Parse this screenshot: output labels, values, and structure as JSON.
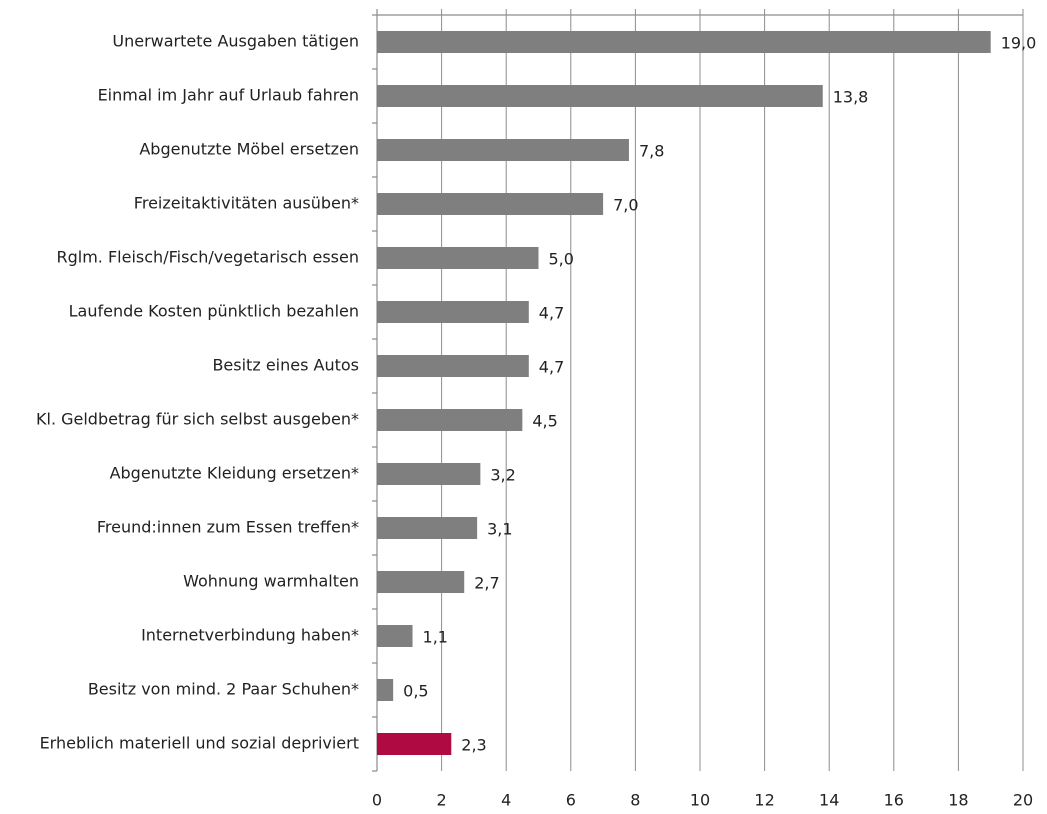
{
  "chart_data": {
    "type": "bar",
    "orientation": "horizontal",
    "categories": [
      "Unerwartete Ausgaben tätigen",
      "Einmal im Jahr auf Urlaub fahren",
      "Abgenutzte Möbel ersetzen",
      "Freizeitaktivitäten ausüben*",
      "Rglm. Fleisch/Fisch/vegetarisch essen",
      "Laufende Kosten pünktlich bezahlen",
      "Besitz eines Autos",
      "Kl. Geldbetrag für sich selbst ausgeben*",
      "Abgenutzte Kleidung ersetzen*",
      "Freund:innen zum Essen treffen*",
      "Wohnung warmhalten",
      "Internetverbindung haben*",
      "Besitz von mind. 2 Paar Schuhen*",
      "Erheblich materiell und sozial depriviert"
    ],
    "values": [
      19.0,
      13.8,
      7.8,
      7.0,
      5.0,
      4.7,
      4.7,
      4.5,
      3.2,
      3.1,
      2.7,
      1.1,
      0.5,
      2.3
    ],
    "value_labels": [
      "19,0",
      "13,8",
      "7,8",
      "7,0",
      "5,0",
      "4,7",
      "4,7",
      "4,5",
      "3,2",
      "3,1",
      "2,7",
      "1,1",
      "0,5",
      "2,3"
    ],
    "colors": [
      "#7f7f7f",
      "#7f7f7f",
      "#7f7f7f",
      "#7f7f7f",
      "#7f7f7f",
      "#7f7f7f",
      "#7f7f7f",
      "#7f7f7f",
      "#7f7f7f",
      "#7f7f7f",
      "#7f7f7f",
      "#7f7f7f",
      "#7f7f7f",
      "#b00a42"
    ],
    "xlim": [
      0,
      20
    ],
    "xticks": [
      0,
      2,
      4,
      6,
      8,
      10,
      12,
      14,
      16,
      18,
      20
    ],
    "grid": true
  }
}
